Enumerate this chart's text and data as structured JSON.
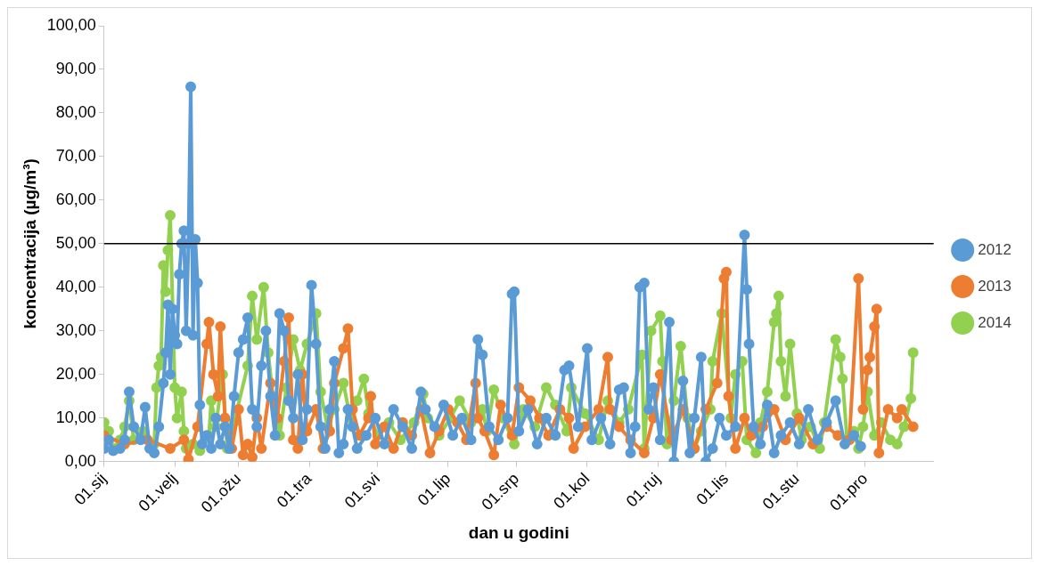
{
  "chart_data": {
    "type": "line",
    "xlabel": "dan u godini",
    "ylabel": "koncentracija (µg/m³)",
    "xlim": [
      "--01-01",
      "--12-31"
    ],
    "xticks": [
      {
        "value": "--01-01",
        "label": "01.sij"
      },
      {
        "value": "--02-01",
        "label": "01.velj"
      },
      {
        "value": "--03-01",
        "label": "01.ožu"
      },
      {
        "value": "--04-01",
        "label": "01.tra"
      },
      {
        "value": "--05-01",
        "label": "01.svi"
      },
      {
        "value": "--06-01",
        "label": "01.lip"
      },
      {
        "value": "--07-01",
        "label": "01.srp"
      },
      {
        "value": "--08-01",
        "label": "01.kol"
      },
      {
        "value": "--09-01",
        "label": "01.ruj"
      },
      {
        "value": "--10-01",
        "label": "01.lis"
      },
      {
        "value": "--11-01",
        "label": "01.stu"
      },
      {
        "value": "--12-01",
        "label": "01.pro"
      }
    ],
    "ylim": [
      0,
      100
    ],
    "yticks": [
      {
        "value": 0,
        "label": "0,00"
      },
      {
        "value": 10,
        "label": "10,00"
      },
      {
        "value": 20,
        "label": "20,00"
      },
      {
        "value": 30,
        "label": "30,00"
      },
      {
        "value": 40,
        "label": "40,00"
      },
      {
        "value": 50,
        "label": "50,00"
      },
      {
        "value": 60,
        "label": "60,00"
      },
      {
        "value": 70,
        "label": "70,00"
      },
      {
        "value": 80,
        "label": "80,00"
      },
      {
        "value": 90,
        "label": "90,00"
      },
      {
        "value": 100,
        "label": "100,00"
      }
    ],
    "grid": false,
    "legend": "right",
    "marker": "circle",
    "line_style": "solid",
    "ref_lines": [
      {
        "axis": "y",
        "value": 50,
        "color": "#000000"
      }
    ],
    "series": [
      {
        "name": "2012",
        "color": "#5b9bd5",
        "x": [
          "--01-01",
          "--01-03",
          "--01-05",
          "--01-08",
          "--01-10",
          "--01-12",
          "--01-14",
          "--01-17",
          "--01-19",
          "--01-21",
          "--01-23",
          "--01-25",
          "--01-27",
          "--01-28",
          "--01-29",
          "--01-30",
          "--01-31",
          "--02-01",
          "--02-02",
          "--02-03",
          "--02-04",
          "--02-05",
          "--02-06",
          "--02-07",
          "--02-08",
          "--02-09",
          "--02-10",
          "--02-11",
          "--02-12",
          "--02-13",
          "--02-15",
          "--02-17",
          "--02-19",
          "--02-21",
          "--02-23",
          "--02-25",
          "--02-27",
          "--03-01",
          "--03-03",
          "--03-05",
          "--03-07",
          "--03-09",
          "--03-11",
          "--03-13",
          "--03-15",
          "--03-17",
          "--03-19",
          "--03-21",
          "--03-23",
          "--03-25",
          "--03-27",
          "--03-29",
          "--03-31",
          "--04-02",
          "--04-04",
          "--04-06",
          "--04-08",
          "--04-10",
          "--04-12",
          "--04-14",
          "--04-16",
          "--04-18",
          "--04-20",
          "--04-22",
          "--04-26",
          "--04-30",
          "--05-04",
          "--05-08",
          "--05-12",
          "--05-16",
          "--05-20",
          "--05-22",
          "--05-26",
          "--05-30",
          "--06-03",
          "--06-07",
          "--06-11",
          "--06-14",
          "--06-16",
          "--06-19",
          "--06-23",
          "--06-27",
          "--06-29",
          "--06-30",
          "--07-02",
          "--07-06",
          "--07-10",
          "--07-14",
          "--07-18",
          "--07-22",
          "--07-24",
          "--07-28",
          "--08-01",
          "--08-03",
          "--08-07",
          "--08-11",
          "--08-15",
          "--08-17",
          "--08-20",
          "--08-22",
          "--08-24",
          "--08-26",
          "--08-28",
          "--08-30",
          "--09-02",
          "--09-06",
          "--09-08",
          "--09-12",
          "--09-15",
          "--09-17",
          "--09-20",
          "--09-22",
          "--09-25",
          "--09-28",
          "--10-01",
          "--10-05",
          "--10-09",
          "--10-10",
          "--10-11",
          "--10-13",
          "--10-16",
          "--10-19",
          "--10-22",
          "--10-25",
          "--10-29",
          "--11-02",
          "--11-06",
          "--11-10",
          "--11-14",
          "--11-18",
          "--11-22",
          "--11-26",
          "--11-29"
        ],
        "values": [
          3,
          5,
          2.5,
          3,
          5,
          16,
          8,
          5,
          12.5,
          3,
          2,
          8,
          18,
          25,
          36,
          20,
          35,
          29,
          27,
          43,
          50,
          53,
          30,
          50,
          86,
          29,
          51,
          41,
          13,
          4,
          6,
          3,
          10,
          4,
          8,
          3,
          15,
          25,
          28,
          33,
          12,
          8,
          22,
          30,
          15,
          6,
          34,
          30,
          14,
          10,
          20,
          5,
          12,
          40.5,
          27,
          8,
          3,
          12,
          23,
          2,
          4,
          12,
          8,
          3,
          6,
          10,
          4,
          12,
          8,
          3,
          16,
          12,
          8,
          13,
          6,
          10,
          5,
          28,
          24.5,
          8,
          5,
          10,
          38.5,
          39,
          7,
          12,
          4,
          10,
          6,
          21,
          22,
          8,
          26,
          5,
          10,
          4,
          16.5,
          17,
          2,
          8,
          40,
          41,
          12,
          17,
          5,
          32,
          0,
          18.5,
          2,
          10,
          24,
          0,
          3,
          10,
          6,
          8,
          52,
          39.5,
          27,
          8,
          4,
          13,
          2,
          6,
          9,
          4,
          12,
          5,
          9,
          14,
          4,
          6,
          3.5
        ]
      },
      {
        "name": "2013",
        "color": "#ed7d31",
        "x": [
          "--01-01",
          "--01-10",
          "--01-20",
          "--01-30",
          "--02-05",
          "--02-07",
          "--02-11",
          "--02-15",
          "--02-16",
          "--02-18",
          "--02-20",
          "--02-21",
          "--02-23",
          "--02-26",
          "--03-01",
          "--03-03",
          "--03-05",
          "--03-07",
          "--03-09",
          "--03-11",
          "--03-15",
          "--03-18",
          "--03-21",
          "--03-23",
          "--03-25",
          "--03-27",
          "--03-29",
          "--03-31",
          "--04-04",
          "--04-07",
          "--04-10",
          "--04-12",
          "--04-16",
          "--04-18",
          "--04-20",
          "--04-23",
          "--04-27",
          "--04-28",
          "--04-30",
          "--05-04",
          "--05-08",
          "--05-12",
          "--05-16",
          "--05-20",
          "--05-24",
          "--05-28",
          "--06-01",
          "--06-05",
          "--06-09",
          "--06-13",
          "--06-14",
          "--06-17",
          "--06-21",
          "--06-24",
          "--06-29",
          "--07-02",
          "--07-07",
          "--07-11",
          "--07-15",
          "--07-20",
          "--07-24",
          "--07-26",
          "--07-31",
          "--08-06",
          "--08-10",
          "--08-11",
          "--08-15",
          "--08-20",
          "--08-26",
          "--08-30",
          "--09-02",
          "--09-07",
          "--09-12",
          "--09-17",
          "--09-22",
          "--09-27",
          "--09-30",
          "--10-01",
          "--10-02",
          "--10-05",
          "--10-09",
          "--10-12",
          "--10-17",
          "--10-22",
          "--10-27",
          "--11-02",
          "--11-08",
          "--11-14",
          "--11-19",
          "--11-24",
          "--11-28",
          "--11-30",
          "--12-02",
          "--12-03",
          "--12-05",
          "--12-06",
          "--12-07",
          "--12-11",
          "--12-15",
          "--12-17",
          "--12-22"
        ],
        "values": [
          6,
          4,
          5,
          3,
          5,
          0.5,
          8,
          27,
          32,
          20,
          15,
          31,
          10,
          3,
          12,
          1.5,
          4,
          1,
          10,
          3,
          18,
          10,
          23,
          33,
          5,
          3,
          20,
          7,
          12,
          3,
          7,
          18,
          26,
          30.5,
          12,
          6,
          10,
          15,
          4,
          8,
          3,
          9,
          6,
          12,
          2,
          7,
          12,
          9,
          5,
          18,
          10,
          7,
          1.5,
          13,
          6,
          17,
          14,
          10,
          6,
          12,
          10,
          3,
          8,
          12,
          24,
          12,
          8,
          5,
          2,
          10,
          20,
          5,
          12,
          3,
          12,
          18,
          42,
          43.5,
          15,
          3,
          10,
          6,
          8,
          12,
          5,
          10,
          4,
          8,
          6,
          5,
          42,
          12,
          21,
          24,
          31,
          35,
          2,
          12,
          10,
          12,
          8
        ]
      },
      {
        "name": "2014",
        "color": "#92d050",
        "x": [
          "--01-01",
          "--01-03",
          "--01-05",
          "--01-08",
          "--01-10",
          "--01-12",
          "--01-14",
          "--01-18",
          "--01-23",
          "--01-24",
          "--01-25",
          "--01-26",
          "--01-27",
          "--01-28",
          "--01-29",
          "--01-30",
          "--02-01",
          "--02-02",
          "--02-04",
          "--02-05",
          "--02-06",
          "--02-09",
          "--02-12",
          "--02-16",
          "--02-17",
          "--02-19",
          "--02-22",
          "--02-24",
          "--02-27",
          "--03-05",
          "--03-07",
          "--03-09",
          "--03-12",
          "--03-14",
          "--03-16",
          "--03-18",
          "--03-19",
          "--03-22",
          "--03-25",
          "--03-28",
          "--03-31",
          "--04-04",
          "--04-06",
          "--04-09",
          "--04-12",
          "--04-16",
          "--04-19",
          "--04-22",
          "--04-25",
          "--04-27",
          "--05-01",
          "--05-06",
          "--05-11",
          "--05-17",
          "--05-21",
          "--05-23",
          "--05-28",
          "--06-02",
          "--06-06",
          "--06-11",
          "--06-16",
          "--06-18",
          "--06-21",
          "--06-25",
          "--06-30",
          "--07-04",
          "--07-09",
          "--07-14",
          "--07-18",
          "--07-23",
          "--07-25",
          "--07-31",
          "--08-06",
          "--08-10",
          "--08-15",
          "--08-19",
          "--08-25",
          "--08-26",
          "--08-29",
          "--09-02",
          "--09-03",
          "--09-05",
          "--09-08",
          "--09-11",
          "--09-14",
          "--09-17",
          "--09-20",
          "--09-24",
          "--09-25",
          "--09-29",
          "--10-03",
          "--10-05",
          "--10-08",
          "--10-10",
          "--10-14",
          "--10-16",
          "--10-19",
          "--10-22",
          "--10-23",
          "--10-24",
          "--10-25",
          "--10-27",
          "--10-29",
          "--11-01",
          "--11-03",
          "--11-07",
          "--11-11",
          "--11-13",
          "--11-18",
          "--11-20",
          "--11-21",
          "--11-23",
          "--11-26",
          "--11-28",
          "--11-30",
          "--12-02",
          "--12-05",
          "--12-08",
          "--12-12",
          "--12-15",
          "--12-18",
          "--12-21",
          "--12-22"
        ],
        "values": [
          9,
          7,
          3,
          5,
          8,
          14,
          5,
          7,
          4,
          17,
          22,
          24,
          45,
          39,
          48.5,
          56.5,
          17,
          10,
          16,
          7,
          3,
          4,
          2.5,
          6,
          14,
          8,
          20,
          3,
          9,
          22,
          38,
          28,
          40,
          25,
          15,
          9,
          6,
          17,
          28,
          21,
          27,
          34,
          16,
          8,
          12,
          18,
          10,
          14,
          19,
          11,
          6,
          9,
          5,
          9,
          15.5,
          10,
          6,
          10,
          14,
          9,
          12,
          7,
          16.5,
          10,
          4,
          12,
          8,
          17,
          13,
          7,
          17,
          11,
          5,
          14,
          9,
          12,
          24.5,
          3,
          30,
          33.5,
          23,
          4,
          14,
          26.5,
          10,
          3,
          7,
          12,
          23,
          34,
          10,
          20,
          23,
          5,
          2,
          9,
          16,
          32,
          34,
          38,
          23,
          15,
          27,
          11,
          5,
          8,
          3,
          9,
          28,
          24,
          19,
          5,
          7,
          3,
          8,
          16,
          6,
          9,
          5,
          4,
          8,
          14.5,
          25
        ]
      }
    ]
  }
}
